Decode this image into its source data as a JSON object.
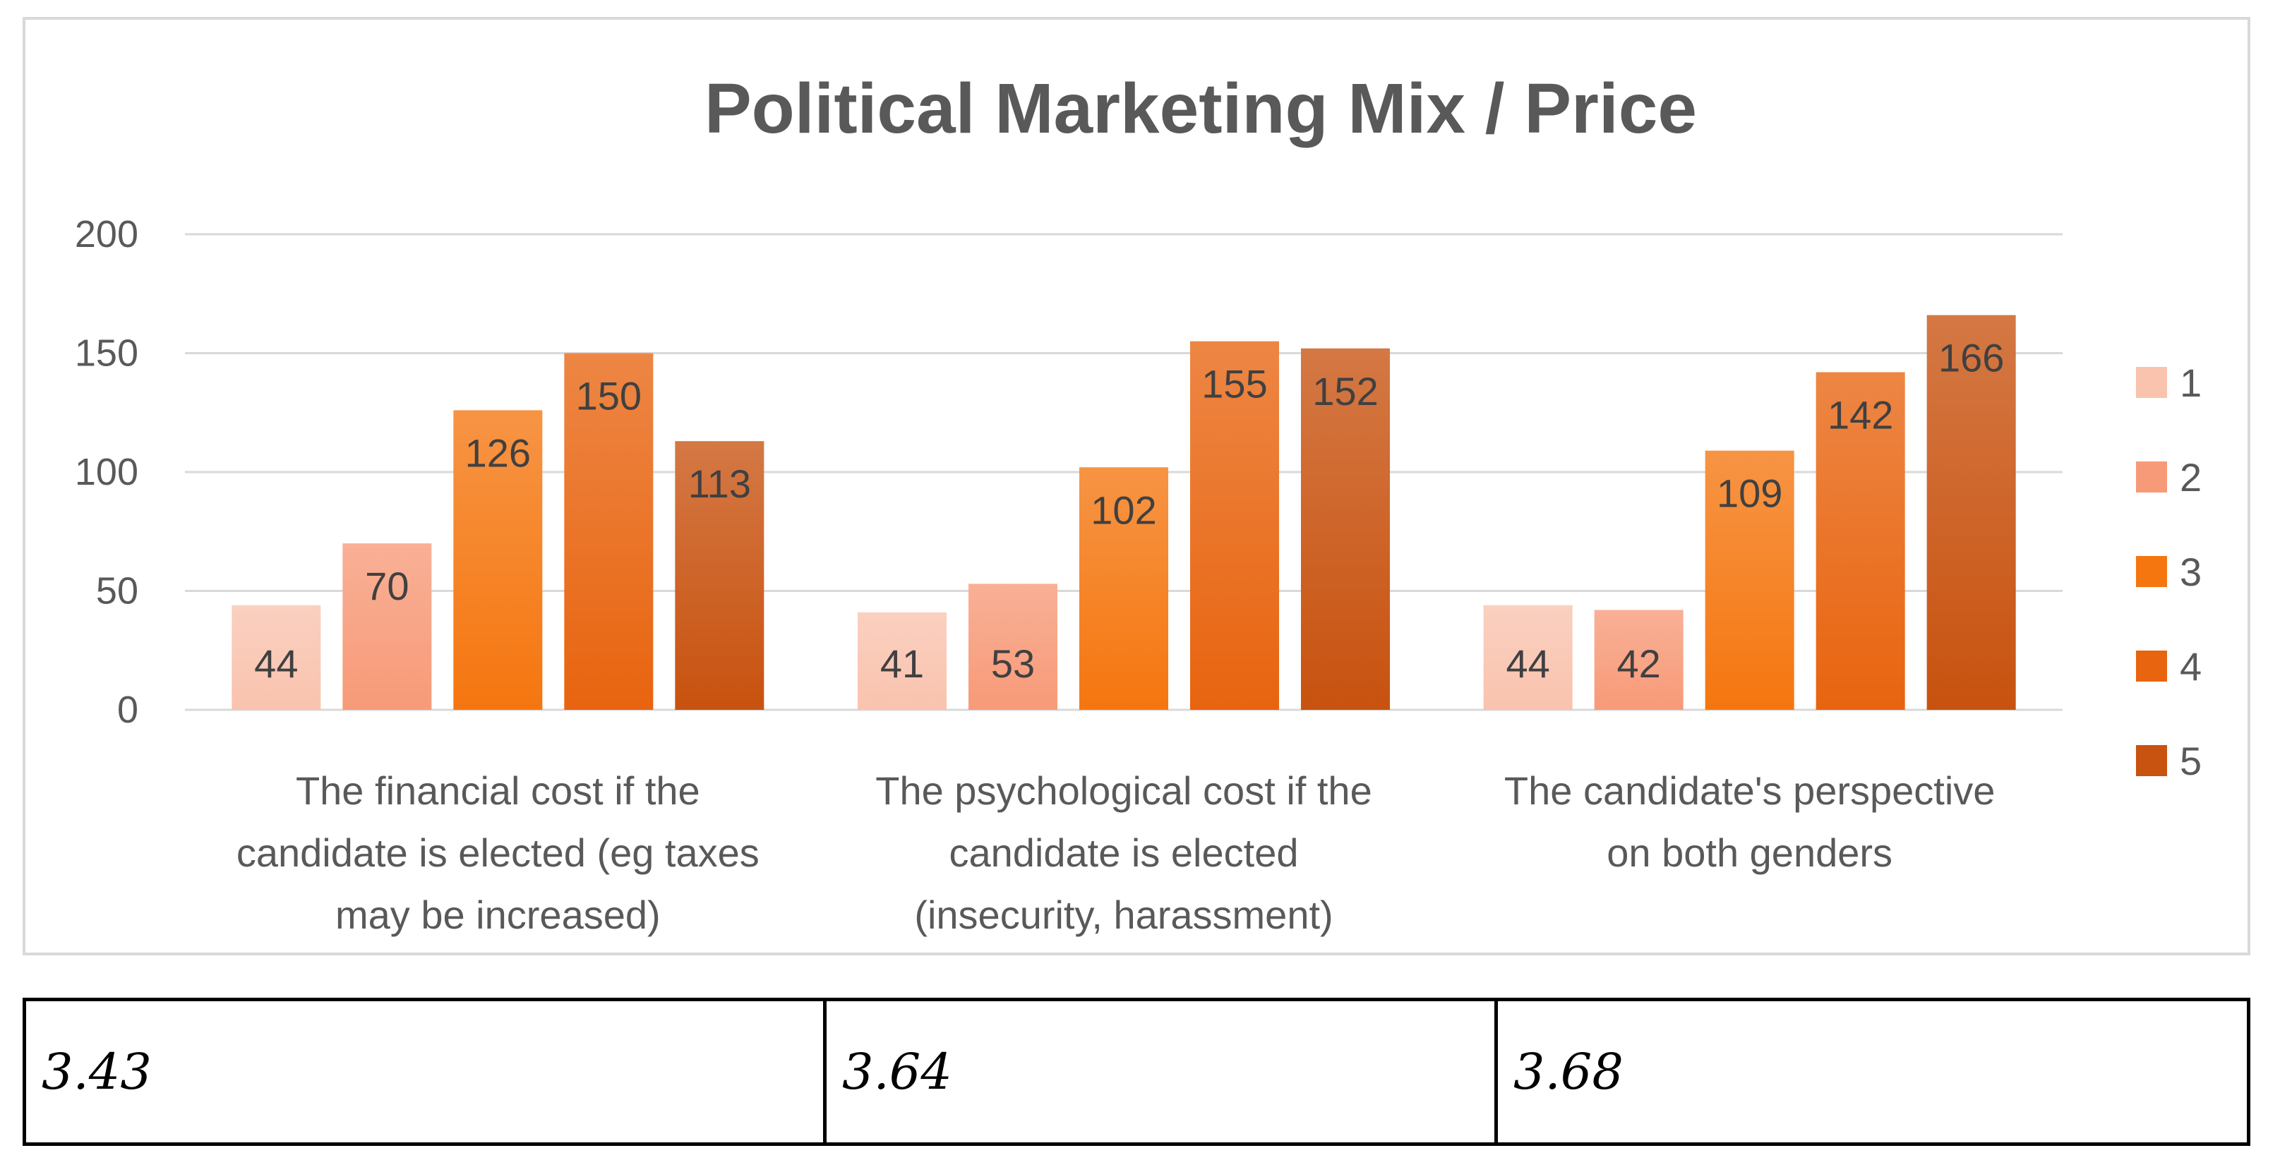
{
  "chart_data": {
    "type": "bar",
    "title": "Political Marketing Mix / Price",
    "categories": [
      [
        "The financial cost if the",
        "candidate is elected (eg taxes",
        "may be increased)"
      ],
      [
        "The psychological cost if the",
        "candidate is elected",
        "(insecurity, harassment)"
      ],
      [
        "The candidate's perspective",
        "on both genders"
      ]
    ],
    "series": [
      {
        "name": "1",
        "values": [
          44,
          41,
          44
        ],
        "color": "#f9c3ae"
      },
      {
        "name": "2",
        "values": [
          70,
          53,
          42
        ],
        "color": "#f79a78"
      },
      {
        "name": "3",
        "values": [
          126,
          102,
          109
        ],
        "color": "#f5760f"
      },
      {
        "name": "4",
        "values": [
          150,
          155,
          142
        ],
        "color": "#e8640f"
      },
      {
        "name": "5",
        "values": [
          113,
          152,
          166
        ],
        "color": "#c8520f"
      }
    ],
    "ylim": [
      0,
      200
    ],
    "yticks": [
      "0",
      "50",
      "100",
      "150",
      "200"
    ],
    "xlabel": "",
    "ylabel": "",
    "grid": true,
    "legend": "right"
  },
  "table": {
    "cells": [
      "3.43",
      "3.64",
      "3.68"
    ]
  }
}
